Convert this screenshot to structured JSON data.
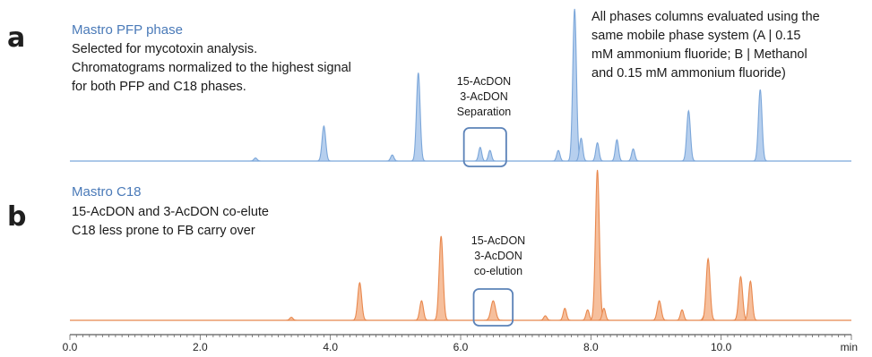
{
  "chart_data": {
    "type": "line",
    "xlabel": "min",
    "xlim": [
      0.0,
      12.0
    ],
    "x_ticks": [
      "0.0",
      "2.0",
      "4.0",
      "6.0",
      "8.0",
      "10.0"
    ],
    "panels": [
      {
        "letter": "a",
        "title": "Mastro PFP phase",
        "notes": [
          "Selected for mycotoxin analysis.",
          "Chromatograms normalized to the highest signal",
          "for both PFP and C18 phases."
        ],
        "extra_note": [
          "All phases columns evaluated using the",
          "same mobile phase system (A | 0.15",
          "mM ammonium fluoride; B | Methanol",
          "and 0.15 mM ammonium fluoride)"
        ],
        "box_label": [
          "15-AcDON",
          "3-AcDON",
          "Separation"
        ],
        "box_range": [
          6.05,
          6.7
        ],
        "color": "#7ba6d9",
        "fill": "#b6cfee",
        "peaks": [
          {
            "t": 2.85,
            "h": 0.02,
            "w": 0.025
          },
          {
            "t": 3.9,
            "h": 0.23,
            "w": 0.028
          },
          {
            "t": 4.95,
            "h": 0.04,
            "w": 0.025
          },
          {
            "t": 5.35,
            "h": 0.58,
            "w": 0.028
          },
          {
            "t": 6.3,
            "h": 0.09,
            "w": 0.024
          },
          {
            "t": 6.45,
            "h": 0.07,
            "w": 0.024
          },
          {
            "t": 7.5,
            "h": 0.07,
            "w": 0.025
          },
          {
            "t": 7.75,
            "h": 1.0,
            "w": 0.028
          },
          {
            "t": 7.85,
            "h": 0.15,
            "w": 0.025
          },
          {
            "t": 8.1,
            "h": 0.12,
            "w": 0.025
          },
          {
            "t": 8.4,
            "h": 0.14,
            "w": 0.025
          },
          {
            "t": 8.65,
            "h": 0.08,
            "w": 0.025
          },
          {
            "t": 9.5,
            "h": 0.33,
            "w": 0.028
          },
          {
            "t": 10.6,
            "h": 0.47,
            "w": 0.028
          }
        ]
      },
      {
        "letter": "b",
        "title": "Mastro C18",
        "notes": [
          "15-AcDON and 3-AcDON co-elute",
          "C18 less prone to FB carry over"
        ],
        "box_label": [
          "15-AcDON",
          "3-AcDON",
          "co-elution"
        ],
        "box_range": [
          6.2,
          6.8
        ],
        "color": "#e8884e",
        "fill": "#f6bf9c",
        "peaks": [
          {
            "t": 3.4,
            "h": 0.02,
            "w": 0.025
          },
          {
            "t": 4.45,
            "h": 0.25,
            "w": 0.03
          },
          {
            "t": 5.4,
            "h": 0.13,
            "w": 0.028
          },
          {
            "t": 5.7,
            "h": 0.56,
            "w": 0.03
          },
          {
            "t": 6.5,
            "h": 0.13,
            "w": 0.035
          },
          {
            "t": 7.3,
            "h": 0.03,
            "w": 0.025
          },
          {
            "t": 7.6,
            "h": 0.08,
            "w": 0.025
          },
          {
            "t": 7.95,
            "h": 0.07,
            "w": 0.025
          },
          {
            "t": 8.1,
            "h": 1.0,
            "w": 0.03
          },
          {
            "t": 8.2,
            "h": 0.08,
            "w": 0.025
          },
          {
            "t": 9.05,
            "h": 0.13,
            "w": 0.03
          },
          {
            "t": 9.4,
            "h": 0.07,
            "w": 0.025
          },
          {
            "t": 9.75,
            "h": 0.04,
            "w": 0.025
          },
          {
            "t": 9.8,
            "h": 0.41,
            "w": 0.03
          },
          {
            "t": 10.3,
            "h": 0.29,
            "w": 0.03
          },
          {
            "t": 10.45,
            "h": 0.26,
            "w": 0.028
          }
        ]
      }
    ]
  }
}
